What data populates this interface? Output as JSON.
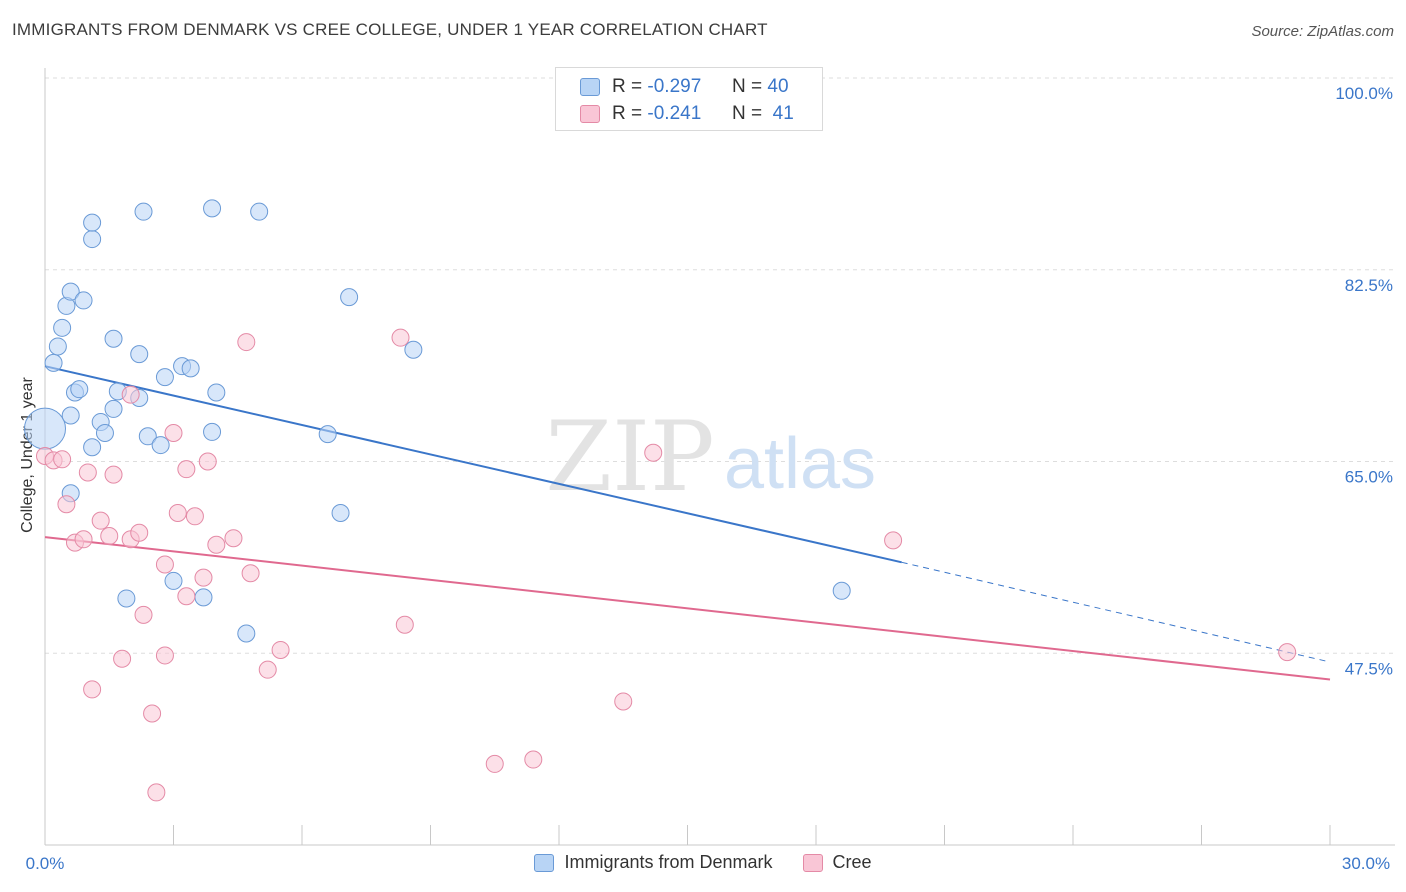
{
  "title": "IMMIGRANTS FROM DENMARK VS CREE COLLEGE, UNDER 1 YEAR CORRELATION CHART",
  "source": "Source: ZipAtlas.com",
  "watermark": {
    "zip": "ZIP",
    "atlas": "atlas"
  },
  "legend_top": [
    {
      "r_label": "R =",
      "r_value": "-0.297",
      "n_label": "N =",
      "n_value": "40"
    },
    {
      "r_label": "R =",
      "r_value": "-0.241",
      "n_label": "N =",
      "n_value": "41"
    }
  ],
  "legend_bottom": [
    {
      "label": "Immigrants from Denmark"
    },
    {
      "label": "Cree"
    }
  ],
  "chart_data": {
    "type": "scatter",
    "ylabel": "College, Under 1 year",
    "x_tick_labels": {
      "left": "0.0%",
      "right": "30.0%"
    },
    "y_tick_labels": [
      "100.0%",
      "82.5%",
      "65.0%",
      "47.5%"
    ],
    "xlim": [
      0,
      30
    ],
    "ylim": [
      30,
      100
    ],
    "y_ticks": [
      100,
      82.5,
      65,
      47.5
    ],
    "colors": {
      "blue": "#3a76c9",
      "pink": "#e0698f",
      "blue_fill": "#b8d4f5",
      "pink_fill": "#f9c6d6",
      "tick_text": "#3a76c9"
    },
    "series": [
      {
        "name": "Immigrants from Denmark",
        "color": "#3a76c9",
        "points": [
          [
            0.0,
            68.0,
            20
          ],
          [
            0.2,
            74.0,
            8
          ],
          [
            0.3,
            75.5,
            8
          ],
          [
            0.4,
            77.2,
            8
          ],
          [
            0.5,
            79.2,
            8
          ],
          [
            0.6,
            80.5,
            8
          ],
          [
            0.9,
            79.7,
            8
          ],
          [
            0.6,
            69.2,
            8
          ],
          [
            0.7,
            71.3,
            8
          ],
          [
            0.8,
            71.6,
            8
          ],
          [
            1.1,
            66.3,
            8
          ],
          [
            1.3,
            68.6,
            8
          ],
          [
            1.4,
            67.6,
            8
          ],
          [
            1.6,
            69.8,
            8
          ],
          [
            1.7,
            71.4,
            8
          ],
          [
            1.1,
            85.3,
            8
          ],
          [
            1.1,
            86.8,
            8
          ],
          [
            2.3,
            87.8,
            8
          ],
          [
            3.9,
            88.1,
            8
          ],
          [
            5.0,
            87.8,
            8
          ],
          [
            1.6,
            76.2,
            8
          ],
          [
            2.2,
            74.8,
            8
          ],
          [
            2.8,
            72.7,
            8
          ],
          [
            3.2,
            73.7,
            8
          ],
          [
            3.4,
            73.5,
            8
          ],
          [
            2.2,
            70.8,
            8
          ],
          [
            2.4,
            67.3,
            8
          ],
          [
            2.7,
            66.5,
            8
          ],
          [
            3.9,
            67.7,
            8
          ],
          [
            4.0,
            71.3,
            8
          ],
          [
            7.1,
            80.0,
            8
          ],
          [
            8.6,
            75.2,
            8
          ],
          [
            6.6,
            67.5,
            8
          ],
          [
            0.6,
            62.1,
            8
          ],
          [
            6.9,
            60.3,
            8
          ],
          [
            3.0,
            54.1,
            8
          ],
          [
            1.9,
            52.5,
            8
          ],
          [
            3.7,
            52.6,
            8
          ],
          [
            4.7,
            49.3,
            8
          ],
          [
            18.6,
            53.2,
            8
          ]
        ],
        "trend": {
          "x": [
            0,
            20
          ],
          "y": [
            73.7,
            55.8
          ]
        },
        "trend_dashed": {
          "x": [
            20,
            30
          ],
          "y": [
            55.8,
            46.7
          ]
        }
      },
      {
        "name": "Cree",
        "color": "#e0698f",
        "points": [
          [
            0.0,
            65.5,
            8
          ],
          [
            0.2,
            65.1,
            8
          ],
          [
            0.4,
            65.2,
            8
          ],
          [
            0.5,
            61.1,
            8
          ],
          [
            0.7,
            57.6,
            8
          ],
          [
            0.9,
            57.9,
            8
          ],
          [
            1.0,
            64.0,
            8
          ],
          [
            1.3,
            59.6,
            8
          ],
          [
            1.5,
            58.2,
            8
          ],
          [
            1.6,
            63.8,
            8
          ],
          [
            2.0,
            71.1,
            8
          ],
          [
            2.0,
            57.9,
            8
          ],
          [
            2.2,
            58.5,
            8
          ],
          [
            2.8,
            55.6,
            8
          ],
          [
            3.0,
            67.6,
            8
          ],
          [
            3.1,
            60.3,
            8
          ],
          [
            3.3,
            64.3,
            8
          ],
          [
            3.5,
            60.0,
            8
          ],
          [
            3.8,
            65.0,
            8
          ],
          [
            3.7,
            54.4,
            8
          ],
          [
            3.3,
            52.7,
            8
          ],
          [
            4.0,
            57.4,
            8
          ],
          [
            4.4,
            58.0,
            8
          ],
          [
            4.8,
            54.8,
            8
          ],
          [
            4.7,
            75.9,
            8
          ],
          [
            8.3,
            76.3,
            8
          ],
          [
            1.1,
            44.2,
            8
          ],
          [
            1.8,
            47.0,
            8
          ],
          [
            2.3,
            51.0,
            8
          ],
          [
            2.5,
            42.0,
            8
          ],
          [
            2.8,
            47.3,
            8
          ],
          [
            5.2,
            46.0,
            8
          ],
          [
            5.5,
            47.8,
            8
          ],
          [
            8.4,
            50.1,
            8
          ],
          [
            2.6,
            34.8,
            8
          ],
          [
            10.5,
            37.4,
            8
          ],
          [
            11.4,
            37.8,
            8
          ],
          [
            13.5,
            43.1,
            8
          ],
          [
            14.2,
            65.8,
            8
          ],
          [
            19.8,
            57.8,
            8
          ],
          [
            29.0,
            47.6,
            8
          ]
        ],
        "trend": {
          "x": [
            0,
            30
          ],
          "y": [
            58.1,
            45.1
          ]
        }
      }
    ]
  }
}
